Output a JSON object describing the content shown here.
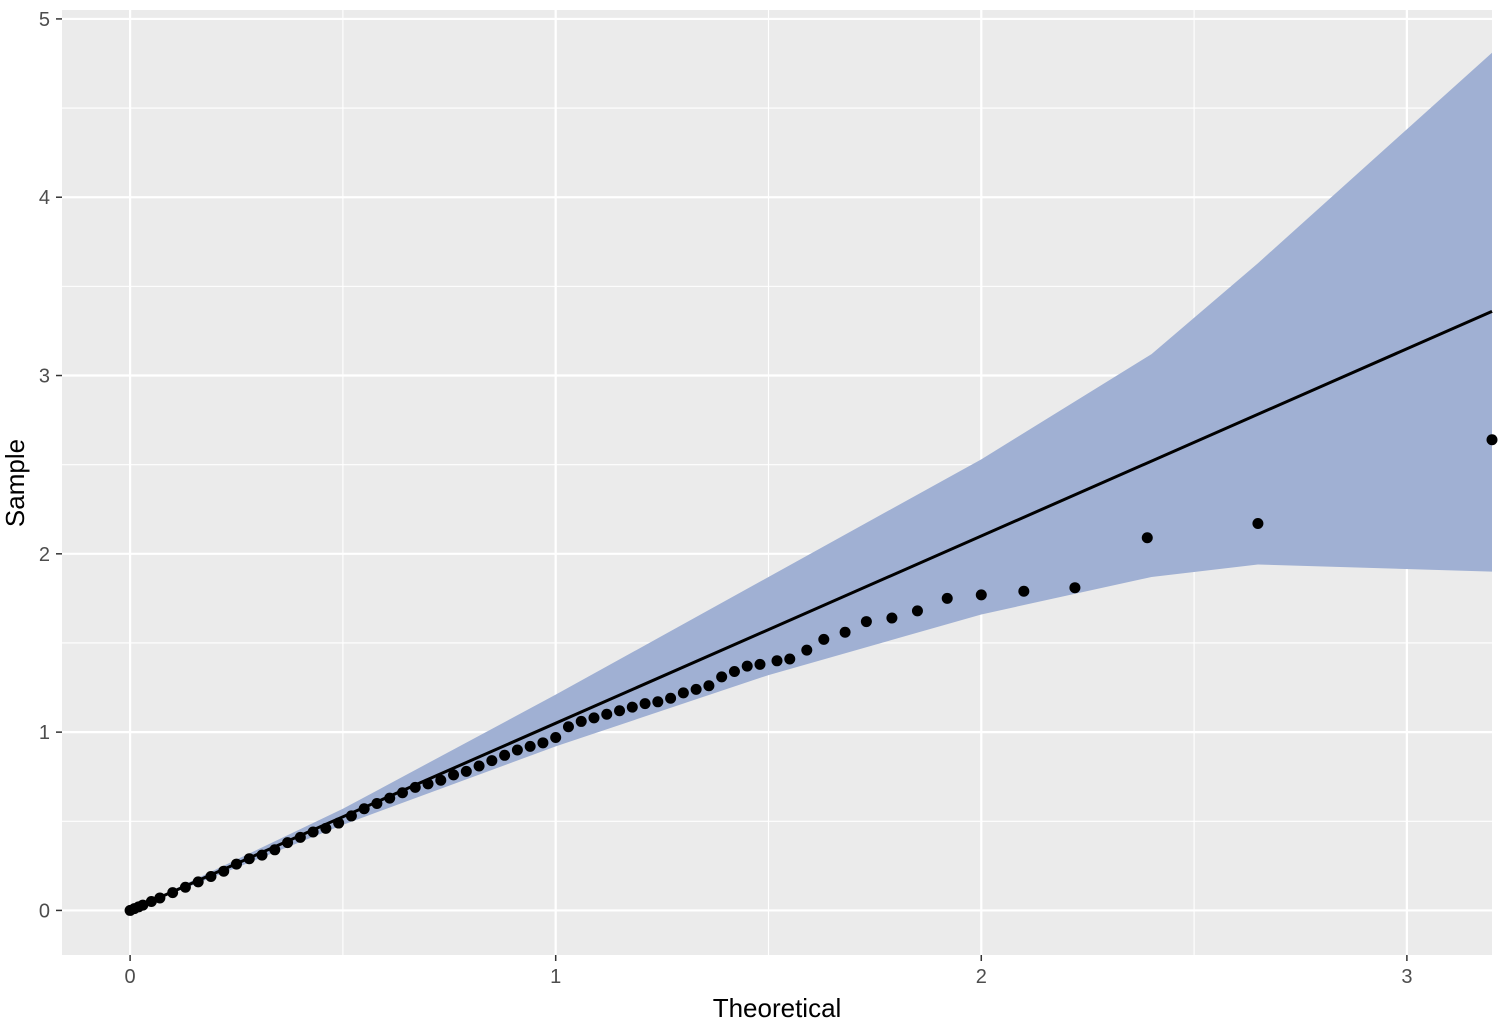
{
  "chart_data": {
    "type": "scatter",
    "title": "",
    "xlabel": "Theoretical",
    "ylabel": "Sample",
    "xlim": [
      -0.16,
      3.2
    ],
    "ylim": [
      -0.25,
      5.05
    ],
    "x_ticks": [
      0,
      1,
      2,
      3
    ],
    "y_ticks": [
      0,
      1,
      2,
      3,
      4,
      5
    ],
    "grid": true,
    "legend": "none",
    "colors": {
      "panel": "#ebebeb",
      "grid": "#ffffff",
      "band": "#a0b0d3",
      "points": "#000000",
      "line": "#000000"
    },
    "reference_line": {
      "x": [
        0,
        3.2
      ],
      "y": [
        0,
        3.36
      ]
    },
    "confidence_band": {
      "x": [
        0,
        0.5,
        1.0,
        1.5,
        2.0,
        2.4,
        2.65,
        3.2
      ],
      "upper": [
        0,
        0.57,
        1.21,
        1.87,
        2.53,
        3.12,
        3.63,
        4.81
      ],
      "lower": [
        0,
        0.48,
        0.92,
        1.32,
        1.66,
        1.87,
        1.94,
        1.9
      ]
    },
    "series": [
      {
        "x": [
          0,
          0.01,
          0.02,
          0.03,
          0.05,
          0.07,
          0.1,
          0.13,
          0.16,
          0.19,
          0.22,
          0.25,
          0.28,
          0.31,
          0.34,
          0.37,
          0.4,
          0.43,
          0.46,
          0.49,
          0.52,
          0.55,
          0.58,
          0.61,
          0.64,
          0.67,
          0.7,
          0.73,
          0.76,
          0.79,
          0.82,
          0.85,
          0.88,
          0.91,
          0.94,
          0.97,
          1.0,
          1.03,
          1.06,
          1.09,
          1.12,
          1.15,
          1.18,
          1.21,
          1.24,
          1.27,
          1.3,
          1.33,
          1.36,
          1.39,
          1.42,
          1.45,
          1.48,
          1.52,
          1.55,
          1.59,
          1.63,
          1.68,
          1.73,
          1.79,
          1.85,
          1.92,
          2.0,
          2.1,
          2.22,
          2.39,
          2.65,
          3.2
        ],
        "y": [
          0,
          0.01,
          0.02,
          0.03,
          0.05,
          0.07,
          0.1,
          0.13,
          0.16,
          0.19,
          0.22,
          0.26,
          0.29,
          0.31,
          0.34,
          0.38,
          0.41,
          0.44,
          0.46,
          0.49,
          0.53,
          0.57,
          0.6,
          0.63,
          0.66,
          0.69,
          0.71,
          0.73,
          0.76,
          0.78,
          0.81,
          0.84,
          0.87,
          0.9,
          0.92,
          0.94,
          0.97,
          1.03,
          1.06,
          1.08,
          1.1,
          1.12,
          1.14,
          1.16,
          1.17,
          1.19,
          1.22,
          1.24,
          1.26,
          1.31,
          1.34,
          1.37,
          1.38,
          1.4,
          1.41,
          1.46,
          1.52,
          1.56,
          1.62,
          1.64,
          1.68,
          1.75,
          1.77,
          1.79,
          1.81,
          2.09,
          2.17,
          2.64
        ]
      }
    ]
  }
}
